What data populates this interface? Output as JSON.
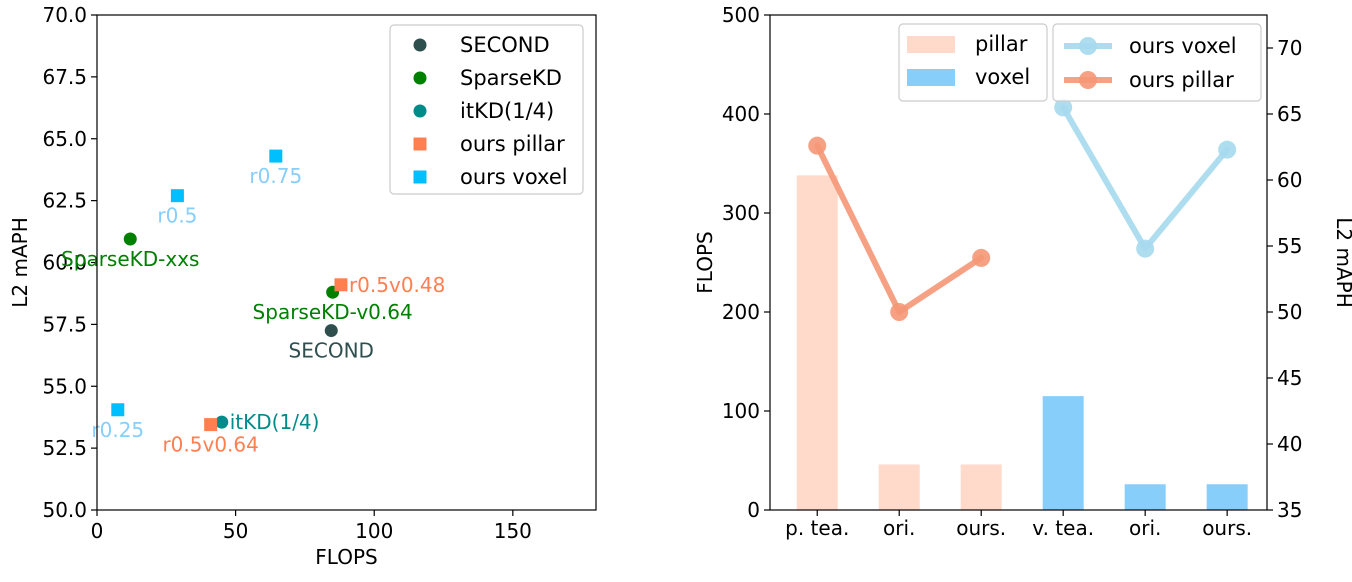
{
  "chart_data": [
    {
      "type": "scatter",
      "xlabel": "FLOPS",
      "ylabel": "L2 mAPH",
      "xlim": [
        0,
        180
      ],
      "ylim": [
        50,
        70
      ],
      "xticks": [
        0,
        50,
        100,
        150
      ],
      "yticks": [
        50.0,
        52.5,
        55.0,
        57.5,
        60.0,
        62.5,
        65.0,
        67.5,
        70.0
      ],
      "legend_position": "top-right",
      "series": [
        {
          "name": "SECOND",
          "marker": "circle",
          "color": "#2f4f4f",
          "points": [
            {
              "x": 84.5,
              "y": 57.25,
              "label": "SECOND",
              "label_pos": "below"
            }
          ]
        },
        {
          "name": "SparseKD",
          "marker": "circle",
          "color": "#008000",
          "points": [
            {
              "x": 12.0,
              "y": 60.95,
              "label": "SparseKD-xxs",
              "label_pos": "below"
            },
            {
              "x": 85.0,
              "y": 58.8,
              "label": "SparseKD-v0.64",
              "label_pos": "below"
            }
          ]
        },
        {
          "name": "itKD(1/4)",
          "marker": "circle",
          "color": "#008b8b",
          "points": [
            {
              "x": 45.0,
              "y": 53.55,
              "label": "itKD(1/4)",
              "label_pos": "right"
            }
          ]
        },
        {
          "name": "ours pillar",
          "marker": "square",
          "color": "#ff7f50",
          "points": [
            {
              "x": 41.0,
              "y": 53.45,
              "label": "r0.5v0.64",
              "label_pos": "below"
            },
            {
              "x": 88.0,
              "y": 59.1,
              "label": "r0.5v0.48",
              "label_pos": "right"
            }
          ]
        },
        {
          "name": "ours voxel",
          "marker": "square",
          "color": "#00bfff",
          "points": [
            {
              "x": 7.5,
              "y": 54.05,
              "label": "r0.25",
              "label_pos": "below"
            },
            {
              "x": 29.0,
              "y": 62.7,
              "label": "r0.5",
              "label_pos": "below"
            },
            {
              "x": 64.5,
              "y": 64.3,
              "label": "r0.75",
              "label_pos": "below"
            }
          ]
        }
      ]
    },
    {
      "type": "bar",
      "categories": [
        "p. tea.",
        "ori.",
        "ours.",
        "v. tea.",
        "ori.",
        "ours."
      ],
      "ylabel": "FLOPS",
      "y2label": "L2 mAPH",
      "ylim": [
        0,
        500
      ],
      "y2lim": [
        35,
        72.5
      ],
      "yticks": [
        0,
        100,
        200,
        300,
        400,
        500
      ],
      "y2ticks": [
        35,
        40,
        45,
        50,
        55,
        60,
        65,
        70
      ],
      "bar_series": [
        {
          "name": "pillar",
          "color": "#ffdacb",
          "values": [
            338,
            46,
            46,
            null,
            null,
            null
          ]
        },
        {
          "name": "voxel",
          "color": "#87cefa",
          "values": [
            null,
            null,
            null,
            115,
            26,
            26
          ]
        }
      ],
      "line_series": [
        {
          "name": "ours voxel",
          "color": "#a6d9ee",
          "axis": "right",
          "values": [
            null,
            null,
            null,
            65.5,
            54.8,
            62.3
          ]
        },
        {
          "name": "ours pillar",
          "color": "#f59777",
          "axis": "right",
          "values": [
            62.6,
            50.0,
            54.1,
            null,
            null,
            null
          ]
        }
      ],
      "legend_bars_position": "top-center",
      "legend_lines_position": "top-right"
    }
  ]
}
